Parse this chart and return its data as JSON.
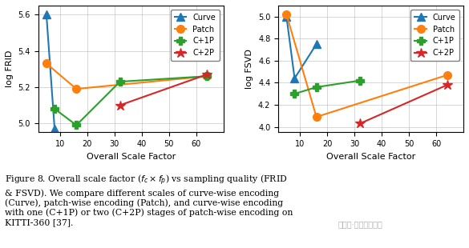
{
  "x_values": [
    5,
    8,
    16,
    32,
    64
  ],
  "frid": {
    "Curve": [
      5.6,
      4.97,
      null,
      null,
      null
    ],
    "Patch": [
      5.33,
      null,
      5.19,
      null,
      5.26
    ],
    "C+1P": [
      null,
      5.08,
      4.99,
      5.23,
      5.26
    ],
    "C+2P": [
      null,
      null,
      null,
      5.1,
      5.27
    ]
  },
  "fsvd": {
    "Curve": [
      5.0,
      4.44,
      4.75,
      null,
      null
    ],
    "Patch": [
      5.02,
      null,
      4.09,
      null,
      4.47
    ],
    "C+1P": [
      null,
      4.3,
      4.36,
      4.42,
      null
    ],
    "C+2P": [
      null,
      null,
      null,
      4.03,
      4.38
    ]
  },
  "colors": {
    "Curve": "#1f77b4",
    "Patch": "#ff7f0e",
    "C+1P": "#2ca02c",
    "C+2P": "#d62728"
  },
  "markers": {
    "Curve": "^",
    "Patch": "o",
    "C+1P": "P",
    "C+2P": "*"
  },
  "xlabel": "Overall Scale Factor",
  "ylabel_left": "log FRID",
  "ylabel_right": "log FSVD",
  "xlim": [
    2,
    70
  ],
  "xticks": [
    10,
    20,
    30,
    40,
    50,
    60
  ],
  "frid_ylim": [
    4.95,
    5.65
  ],
  "frid_yticks": [
    5.0,
    5.2,
    5.4,
    5.6
  ],
  "fsvd_ylim": [
    3.95,
    5.1
  ],
  "fsvd_yticks": [
    4.0,
    4.2,
    4.4,
    4.6,
    4.8,
    5.0
  ],
  "caption_line1": "Figure 8. Overall scale factor (",
  "caption_fc": "f",
  "caption_c": "c",
  "caption_mid": " × ",
  "caption_fp": "f",
  "caption_p": "p",
  "caption_rest": ") vs sampling quality (FRID\n& FSVD). We compare different scales of curve-wise encoding\n(Curve), patch-wise encoding (Patch), and curve-wise encoding\nwith one (C+1P) or two (C+2P) stages of patch-wise encoding on\nKITTI-360 [37].",
  "watermark": "公众号·自动驾驶之心"
}
